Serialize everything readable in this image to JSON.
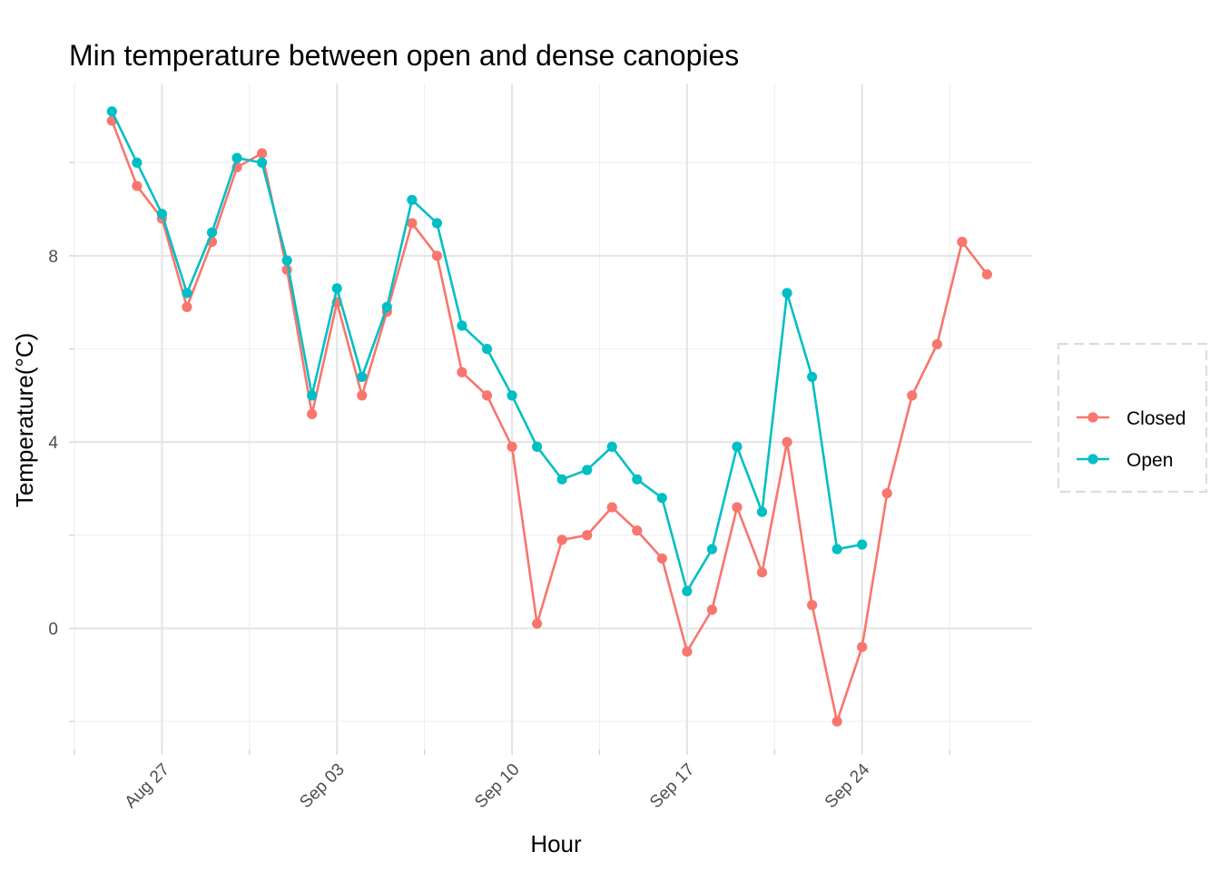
{
  "chart_data": {
    "type": "line",
    "title": "Min temperature between open and dense canopies",
    "xlabel": "Hour",
    "ylabel": "Temperature(°C)",
    "x_start": "Aug 25",
    "x_range_days": [
      -1.5,
      36.8
    ],
    "ylim": [
      -2.6,
      11.7
    ],
    "y_major_ticks": [
      0,
      4,
      8
    ],
    "y_minor_ticks": [
      -2,
      2,
      6,
      10
    ],
    "x_major_ticks": [
      {
        "day": 2,
        "label": "Aug 27"
      },
      {
        "day": 9,
        "label": "Sep 03"
      },
      {
        "day": 16,
        "label": "Sep 10"
      },
      {
        "day": 23,
        "label": "Sep 17"
      },
      {
        "day": 30,
        "label": "Sep 24"
      }
    ],
    "x_minor_ticks": [
      -1.5,
      5.5,
      12.5,
      19.5,
      26.5,
      33.5
    ],
    "legend_position": "right",
    "series": [
      {
        "name": "Closed",
        "color": "#F8766D",
        "x": [
          0,
          1,
          2,
          3,
          4,
          5,
          6,
          7,
          8,
          9,
          10,
          11,
          12,
          13,
          14,
          15,
          16,
          17,
          18,
          19,
          20,
          21,
          22,
          23,
          24,
          25,
          26,
          27,
          28,
          29,
          30,
          31,
          32,
          33,
          34,
          35
        ],
        "values": [
          10.9,
          9.5,
          8.8,
          6.9,
          8.3,
          9.9,
          10.2,
          7.7,
          4.6,
          7.0,
          5.0,
          6.8,
          8.7,
          8.0,
          5.5,
          5.0,
          3.9,
          0.1,
          1.9,
          2.0,
          2.6,
          2.1,
          1.5,
          -0.5,
          0.4,
          2.6,
          1.2,
          4.0,
          0.5,
          -2.0,
          -0.4,
          2.9,
          5.0,
          6.1,
          8.3,
          7.6
        ]
      },
      {
        "name": "Open",
        "color": "#00BFC4",
        "x": [
          0,
          1,
          2,
          3,
          4,
          5,
          6,
          7,
          8,
          9,
          10,
          11,
          12,
          13,
          14,
          15,
          16,
          17,
          18,
          19,
          20,
          21,
          22,
          23,
          24,
          25,
          26,
          27,
          28,
          29,
          30
        ],
        "values": [
          11.1,
          10.0,
          8.9,
          7.2,
          8.5,
          10.1,
          10.0,
          7.9,
          5.0,
          7.3,
          5.4,
          6.9,
          9.2,
          8.7,
          6.5,
          6.0,
          5.0,
          3.9,
          3.2,
          3.4,
          3.9,
          3.2,
          2.8,
          0.8,
          1.7,
          3.9,
          2.5,
          7.2,
          5.4,
          1.7,
          1.8
        ]
      }
    ]
  }
}
